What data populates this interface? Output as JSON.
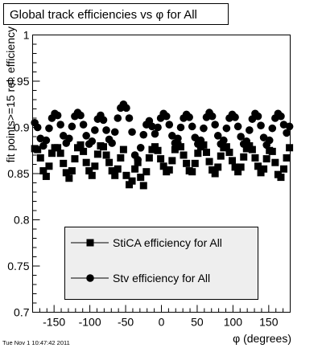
{
  "stamp": "Tue Nov  1 10:47:42 2011",
  "chart_data": {
    "type": "scatter",
    "title": "Global track efficiencies vs φ for All",
    "xlabel": "φ (degrees)",
    "ylabel": "fit points>=15 rel. efficiency",
    "xlim": [
      -180,
      180
    ],
    "ylim": [
      0.7,
      1.0
    ],
    "x_ticks": [
      -150,
      -100,
      -50,
      0,
      50,
      100,
      150
    ],
    "y_ticks": [
      0.7,
      0.75,
      0.8,
      0.85,
      0.9,
      0.95,
      1.0
    ],
    "y_tick_labels": [
      "0.7",
      "0.75",
      "0.8",
      "0.85",
      "0.9",
      "0.95",
      "1"
    ],
    "grid": false,
    "legend_position": "bottom-center",
    "series": [
      {
        "name": "StiCA efficiency  for All",
        "marker": "square",
        "color": "#000000",
        "x": [
          -177,
          -173,
          -169,
          -165,
          -161,
          -157,
          -153,
          -149,
          -145,
          -141,
          -137,
          -133,
          -129,
          -125,
          -121,
          -117,
          -113,
          -109,
          -105,
          -101,
          -97,
          -93,
          -89,
          -85,
          -81,
          -77,
          -73,
          -69,
          -65,
          -61,
          -57,
          -53,
          -49,
          -45,
          -41,
          -37,
          -33,
          -29,
          -25,
          -21,
          -17,
          -13,
          -9,
          -5,
          -1,
          3,
          7,
          11,
          15,
          19,
          23,
          27,
          31,
          35,
          39,
          43,
          47,
          51,
          55,
          59,
          63,
          67,
          71,
          75,
          79,
          83,
          87,
          91,
          95,
          99,
          103,
          107,
          111,
          115,
          119,
          123,
          127,
          131,
          135,
          139,
          143,
          147,
          151,
          155,
          159,
          163,
          167,
          171,
          175,
          179
        ],
        "y": [
          0.877,
          0.876,
          0.867,
          0.853,
          0.847,
          0.858,
          0.872,
          0.878,
          0.878,
          0.872,
          0.861,
          0.851,
          0.845,
          0.853,
          0.866,
          0.878,
          0.881,
          0.874,
          0.862,
          0.853,
          0.848,
          0.858,
          0.871,
          0.88,
          0.879,
          0.87,
          0.862,
          0.853,
          0.848,
          0.855,
          0.867,
          0.876,
          0.848,
          0.838,
          0.842,
          0.855,
          0.862,
          0.846,
          0.837,
          0.852,
          0.867,
          0.876,
          0.879,
          0.875,
          0.866,
          0.858,
          0.852,
          0.854,
          0.864,
          0.876,
          0.881,
          0.879,
          0.87,
          0.861,
          0.853,
          0.852,
          0.861,
          0.872,
          0.879,
          0.881,
          0.873,
          0.863,
          0.854,
          0.85,
          0.857,
          0.869,
          0.878,
          0.879,
          0.873,
          0.864,
          0.857,
          0.852,
          0.857,
          0.868,
          0.877,
          0.88,
          0.876,
          0.867,
          0.858,
          0.851,
          0.855,
          0.866,
          0.875,
          0.874,
          0.862,
          0.849,
          0.846,
          0.855,
          0.867,
          0.878
        ]
      },
      {
        "name": "Stv efficiency  for All",
        "marker": "circle",
        "color": "#000000",
        "x": [
          -177,
          -173,
          -169,
          -165,
          -161,
          -157,
          -153,
          -149,
          -145,
          -141,
          -137,
          -133,
          -129,
          -125,
          -121,
          -117,
          -113,
          -109,
          -105,
          -101,
          -97,
          -93,
          -89,
          -85,
          -81,
          -77,
          -73,
          -69,
          -65,
          -61,
          -57,
          -53,
          -49,
          -45,
          -41,
          -37,
          -33,
          -29,
          -25,
          -21,
          -17,
          -13,
          -9,
          -5,
          -1,
          3,
          7,
          11,
          15,
          19,
          23,
          27,
          31,
          35,
          39,
          43,
          47,
          51,
          55,
          59,
          63,
          67,
          71,
          75,
          79,
          83,
          87,
          91,
          95,
          99,
          103,
          107,
          111,
          115,
          119,
          123,
          127,
          131,
          135,
          139,
          143,
          147,
          151,
          155,
          159,
          163,
          167,
          171,
          175,
          179
        ],
        "y": [
          0.905,
          0.9,
          0.888,
          0.88,
          0.886,
          0.899,
          0.91,
          0.915,
          0.913,
          0.903,
          0.891,
          0.883,
          0.888,
          0.901,
          0.912,
          0.916,
          0.913,
          0.903,
          0.891,
          0.882,
          0.885,
          0.897,
          0.909,
          0.913,
          0.908,
          0.897,
          0.887,
          0.883,
          0.895,
          0.91,
          0.921,
          0.925,
          0.921,
          0.91,
          0.895,
          0.87,
          0.865,
          0.878,
          0.892,
          0.903,
          0.907,
          0.901,
          0.893,
          0.9,
          0.91,
          0.915,
          0.912,
          0.903,
          0.891,
          0.883,
          0.888,
          0.9,
          0.91,
          0.914,
          0.911,
          0.901,
          0.889,
          0.882,
          0.886,
          0.899,
          0.911,
          0.916,
          0.912,
          0.903,
          0.891,
          0.882,
          0.886,
          0.899,
          0.91,
          0.914,
          0.911,
          0.901,
          0.89,
          0.882,
          0.885,
          0.897,
          0.909,
          0.915,
          0.912,
          0.902,
          0.889,
          0.881,
          0.886,
          0.899,
          0.91,
          0.915,
          0.912,
          0.903,
          0.894,
          0.901
        ]
      }
    ]
  }
}
